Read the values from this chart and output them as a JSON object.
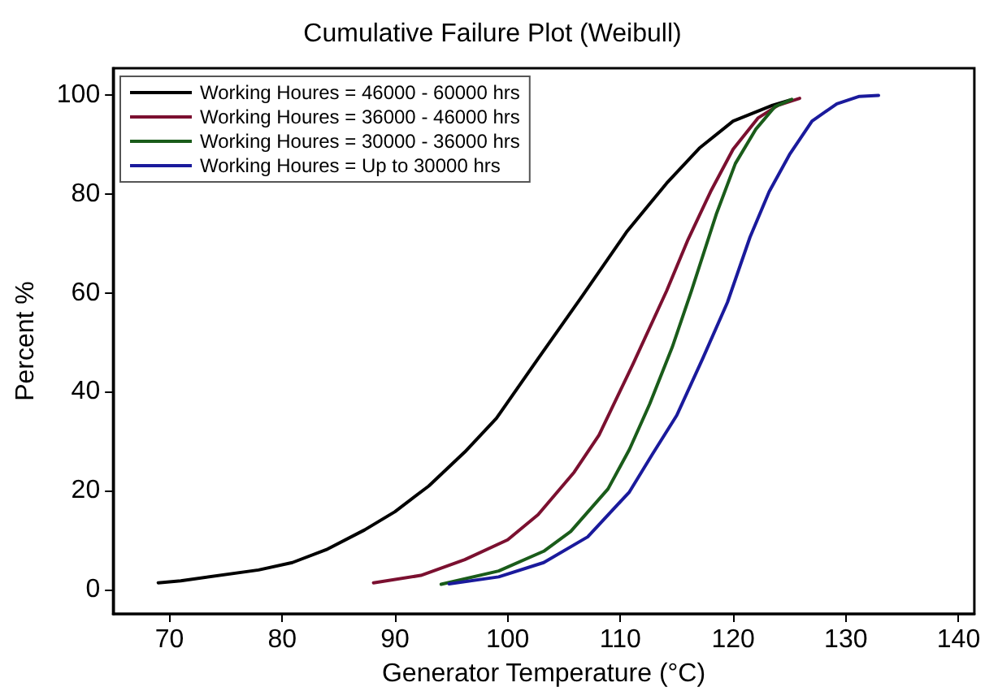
{
  "chart_data": {
    "type": "line",
    "title": "Cumulative Failure Plot (Weibull)",
    "xlabel": "Generator Temperature (°C)",
    "ylabel": "Percent %",
    "xlim": [
      65,
      141.4
    ],
    "xticks": [
      70,
      80,
      90,
      100,
      110,
      120,
      130,
      140
    ],
    "ylim": [
      -5,
      105.5
    ],
    "yticks": [
      0,
      20,
      40,
      60,
      80,
      100
    ],
    "grid": false,
    "legend": "top left",
    "marker": "none",
    "line_style": "solid",
    "series": [
      {
        "name": "Working Houres = 46000 - 60000 hrs",
        "color": "#000000",
        "x": [
          69,
          71,
          77.9,
          80.9,
          83.9,
          87.3,
          90,
          93,
          96.2,
          99,
          102.7,
          106.6,
          110.6,
          114.1,
          117,
          120,
          123.5,
          125
        ],
        "values": [
          1.3,
          1.7,
          3.9,
          5.4,
          8,
          12,
          15.7,
          20.9,
          27.8,
          34.6,
          46.7,
          59.3,
          72.5,
          82.2,
          89.3,
          94.8,
          98,
          99
        ]
      },
      {
        "name": "Working Houres = 36000 - 46000 hrs",
        "color": "#7b1030",
        "x": [
          88.1,
          92.3,
          96.2,
          100,
          102.7,
          105.9,
          108.1,
          111.1,
          114.1,
          116,
          118,
          120,
          122.2,
          124,
          125.9
        ],
        "values": [
          1.3,
          2.8,
          6,
          10,
          15.1,
          23.7,
          31.2,
          45.5,
          60.4,
          70.8,
          80.5,
          89.1,
          95.4,
          98,
          99.4
        ]
      },
      {
        "name": "Working Houres = 30000 - 36000 hrs",
        "color": "#1a5c1a",
        "x": [
          94.1,
          99.2,
          103.2,
          105.6,
          108.9,
          110.8,
          112.6,
          114.6,
          116.3,
          118.5,
          120.2,
          122,
          123.7,
          125.2
        ],
        "values": [
          1,
          3.7,
          7.7,
          11.7,
          20.3,
          28.3,
          37.5,
          49,
          60.4,
          75.9,
          86.2,
          93.1,
          97.7,
          99.2
        ]
      },
      {
        "name": "Working Houres = Up to 30000 hrs",
        "color": "#1a1a9c",
        "x": [
          94.8,
          99.2,
          103.2,
          107.1,
          110.8,
          112.8,
          115,
          117.3,
          119.5,
          121.5,
          123.2,
          125,
          127,
          129.2,
          131.2,
          132.9
        ],
        "values": [
          1.1,
          2.5,
          5.4,
          10.6,
          19.7,
          27.2,
          35.2,
          46.7,
          58.1,
          71.3,
          80.5,
          88,
          94.8,
          98.3,
          99.8,
          100
        ]
      }
    ]
  }
}
